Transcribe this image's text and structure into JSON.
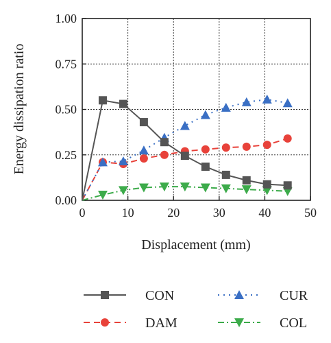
{
  "chart_data": {
    "type": "line",
    "xlabel": "Displacement (mm)",
    "ylabel": "Energy dissipation ratio",
    "xlim": [
      0,
      50
    ],
    "ylim": [
      0,
      1.0
    ],
    "x_ticks": [
      "0",
      "10",
      "20",
      "30",
      "40",
      "50"
    ],
    "y_ticks": [
      "0.00",
      "0.25",
      "0.50",
      "0.75",
      "1.00"
    ],
    "grid": true,
    "legend_position": "bottom",
    "series": [
      {
        "name": "CON",
        "color": "#555555",
        "marker": "square",
        "line_style": "solid",
        "x": [
          0,
          4.5,
          9,
          13.5,
          18,
          22.5,
          27,
          31.5,
          36,
          40.5,
          45
        ],
        "y": [
          0,
          0.55,
          0.53,
          0.43,
          0.32,
          0.245,
          0.185,
          0.14,
          0.11,
          0.088,
          0.082
        ]
      },
      {
        "name": "CUR",
        "color": "#3a6fc4",
        "marker": "triangle-up",
        "line_style": "dotted",
        "x": [
          0,
          4.5,
          9,
          13.5,
          18,
          22.5,
          27,
          31.5,
          36,
          40.5,
          45
        ],
        "y": [
          0,
          0.21,
          0.215,
          0.275,
          0.345,
          0.41,
          0.47,
          0.51,
          0.54,
          0.555,
          0.535
        ]
      },
      {
        "name": "DAM",
        "color": "#e8423a",
        "marker": "circle",
        "line_style": "dashed",
        "x": [
          0,
          4.5,
          9,
          13.5,
          18,
          22.5,
          27,
          31.5,
          36,
          40.5,
          45
        ],
        "y": [
          0,
          0.21,
          0.2,
          0.23,
          0.25,
          0.27,
          0.28,
          0.29,
          0.295,
          0.305,
          0.34
        ]
      },
      {
        "name": "COL",
        "color": "#3cab4a",
        "marker": "triangle-down",
        "line_style": "dash-dot",
        "x": [
          0,
          4.5,
          9,
          13.5,
          18,
          22.5,
          27,
          31.5,
          36,
          40.5,
          45
        ],
        "y": [
          0,
          0.03,
          0.055,
          0.07,
          0.075,
          0.075,
          0.07,
          0.065,
          0.06,
          0.055,
          0.05
        ]
      }
    ]
  }
}
